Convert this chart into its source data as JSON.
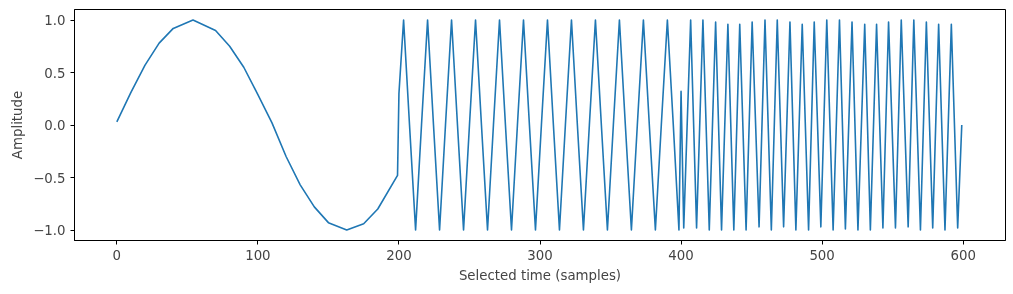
{
  "chart_data": {
    "type": "line",
    "xlabel": "Selected time (samples)",
    "ylabel": "Amplitude",
    "xlim": [
      -30,
      630
    ],
    "ylim": [
      -1.1,
      1.1
    ],
    "xticks": [
      0,
      100,
      200,
      300,
      400,
      500,
      600
    ],
    "yticks": [
      {
        "value": -1.0,
        "label": "−1.0"
      },
      {
        "value": -0.5,
        "label": "−0.5"
      },
      {
        "value": 0.0,
        "label": "0.0"
      },
      {
        "value": 0.5,
        "label": "0.5"
      },
      {
        "value": 1.0,
        "label": "1.0"
      }
    ],
    "grid": false,
    "marker": "none",
    "line_style": "solid",
    "series": [
      {
        "color": "#1f77b4",
        "x": [
          0,
          10,
          20,
          30,
          40,
          54,
          70,
          80,
          90,
          100,
          110,
          120,
          130,
          140,
          150,
          163,
          175,
          185,
          199,
          200,
          203.3,
          207.5,
          211.8,
          216,
          220.3,
          224.5,
          228.8,
          233,
          237.3,
          241.5,
          245.8,
          250,
          254.3,
          258.5,
          262.8,
          267,
          271.3,
          275.5,
          279.8,
          284,
          288.3,
          292.5,
          296.8,
          301,
          305.3,
          309.5,
          313.8,
          318,
          322.3,
          326.5,
          330.8,
          335,
          339.3,
          343.5,
          347.8,
          352,
          356.3,
          360.5,
          364.8,
          369,
          373.3,
          377.5,
          381.8,
          386,
          390.3,
          394.5,
          398.5,
          400,
          401.9,
          406.8,
          411,
          415.5,
          420,
          424.5,
          428.7,
          433.2,
          437.4,
          441.6,
          446.1,
          450.4,
          455.3,
          459.5,
          464,
          468.2,
          472.7,
          477.2,
          481.4,
          485.9,
          490.4,
          494.4,
          499.1,
          503.3,
          507.8,
          512.3,
          516.5,
          521.2,
          525.4,
          530.2,
          534.2,
          538.6,
          543.1,
          547.1,
          552,
          556.1,
          561,
          565,
          569.7,
          573.9,
          578.4,
          582.6,
          587.1,
          591.6,
          596.1,
          599
        ],
        "values": [
          0.03,
          0.31,
          0.57,
          0.78,
          0.92,
          1.0,
          0.9,
          0.75,
          0.55,
          0.29,
          0.02,
          -0.3,
          -0.57,
          -0.78,
          -0.93,
          -1.0,
          -0.94,
          -0.8,
          -0.48,
          0.3,
          1.0,
          0,
          -1.0,
          0,
          1.0,
          0,
          -1.0,
          0,
          1.0,
          0,
          -1.0,
          0,
          1.0,
          0,
          -1.0,
          0,
          1.0,
          0,
          -1.0,
          0,
          1.0,
          0,
          -1.0,
          0,
          1.0,
          0,
          -1.0,
          0,
          1.0,
          0,
          -1.0,
          0,
          1.0,
          0,
          -1.0,
          0,
          1.0,
          0,
          -1.0,
          0,
          1.0,
          0,
          -1.0,
          0,
          1.0,
          0,
          -1.0,
          0.32,
          -0.98,
          1.0,
          -0.98,
          1.0,
          -1.0,
          0.98,
          -1.0,
          0.96,
          -1.0,
          0.96,
          -1.0,
          0.98,
          -0.97,
          1.0,
          -1.0,
          1.0,
          -0.97,
          0.98,
          -1.0,
          0.96,
          -1.0,
          0.98,
          -0.97,
          1.0,
          -1.0,
          1.0,
          -0.99,
          0.98,
          -1.0,
          0.96,
          -1.0,
          0.96,
          -0.98,
          0.98,
          -0.98,
          1.0,
          -0.97,
          1.0,
          -1.0,
          0.98,
          -0.98,
          0.96,
          -1.0,
          0.96,
          -0.98,
          0.0
        ]
      }
    ]
  }
}
